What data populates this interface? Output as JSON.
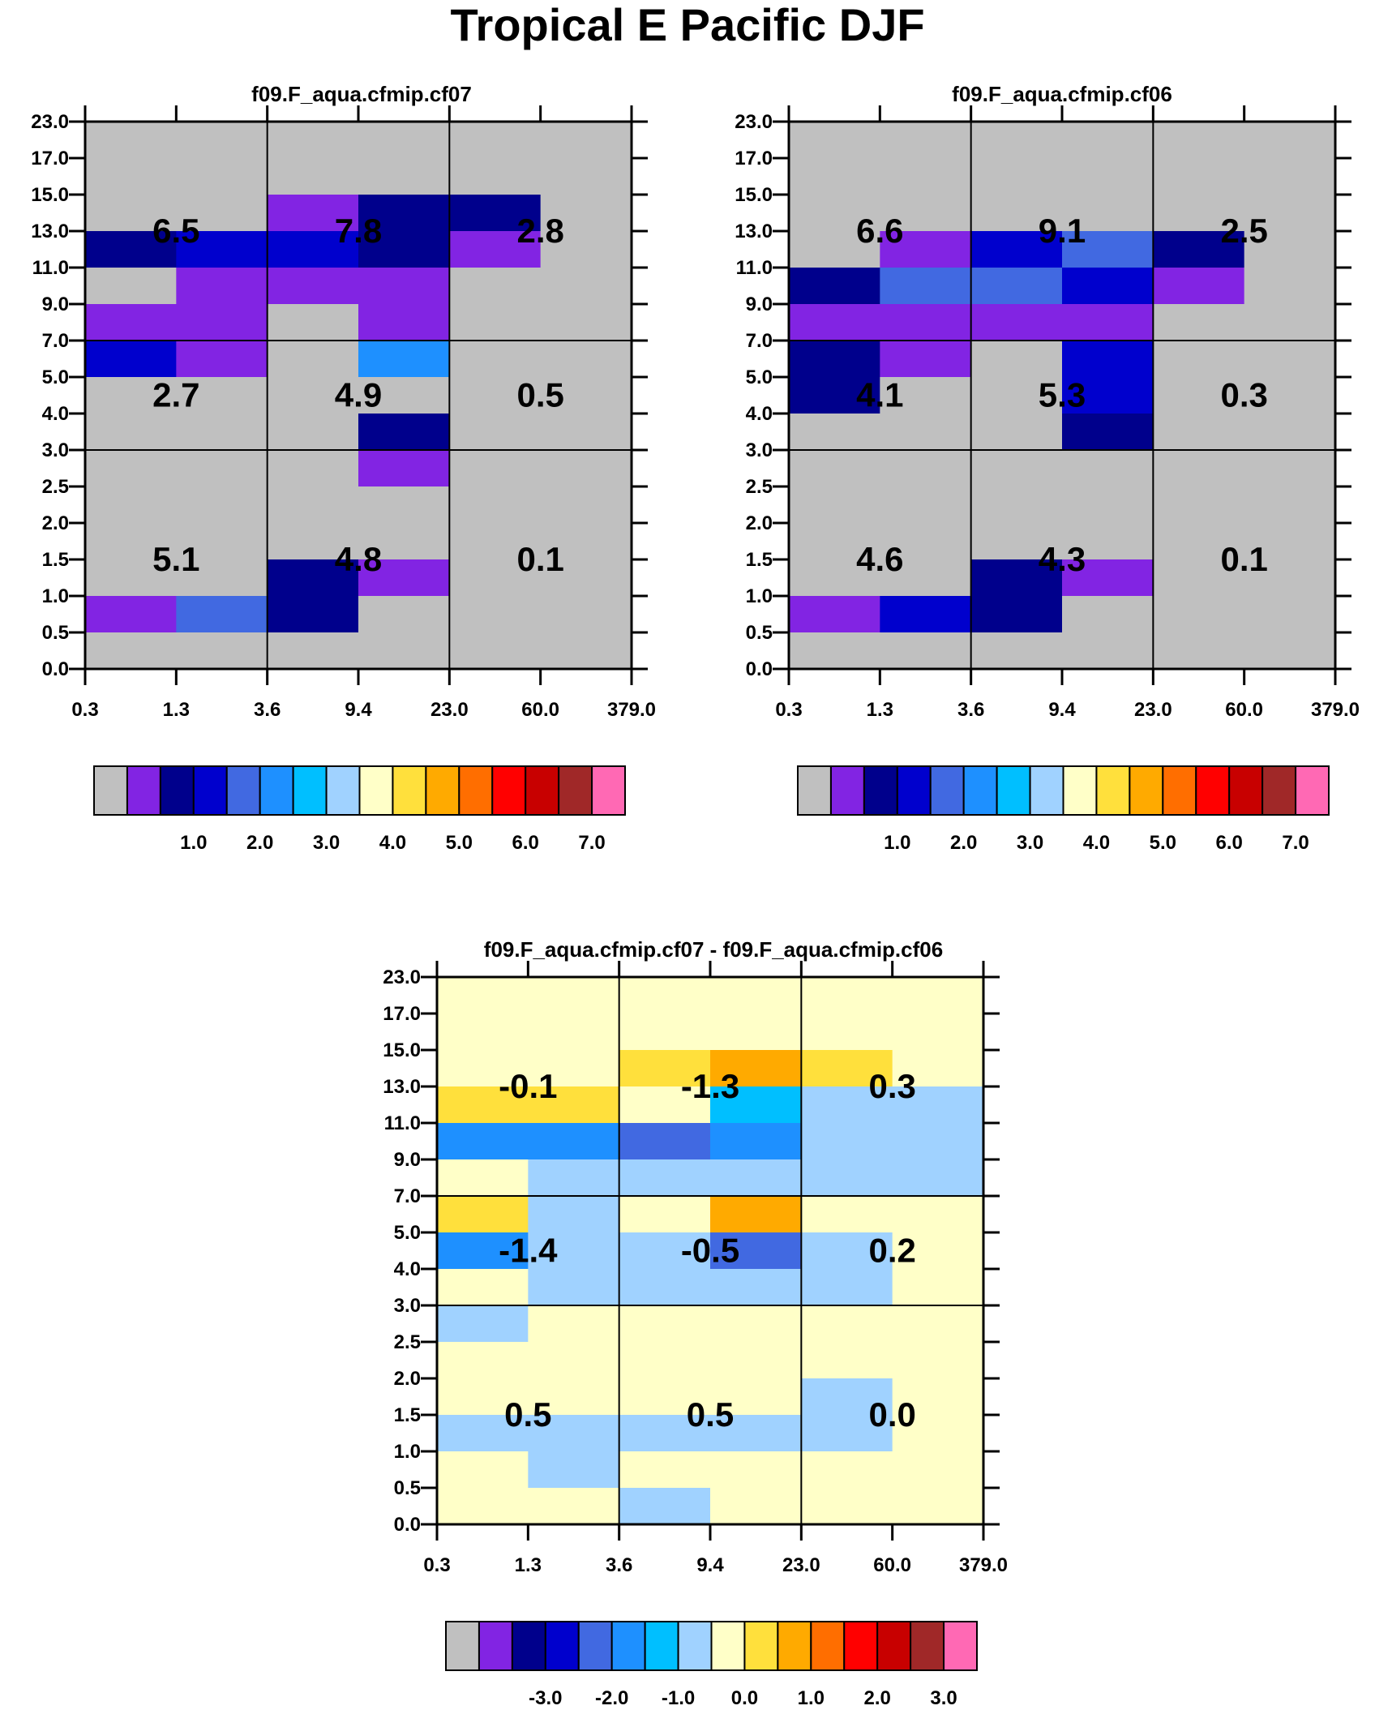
{
  "title": "Tropical E Pacific DJF",
  "colors": {
    "absolute_palette": [
      "#c0c0c0",
      "#8224e3",
      "#00008c",
      "#0000cd",
      "#4169e1",
      "#1e90ff",
      "#00bfff",
      "#a0d2ff",
      "#ffffc8",
      "#ffe03c",
      "#ffaa00",
      "#ff6e00",
      "#ff0000",
      "#c80000",
      "#a02828",
      "#ff69b4"
    ],
    "diff_palette": [
      "#c0c0c0",
      "#8224e3",
      "#00008c",
      "#0000cd",
      "#4169e1",
      "#1e90ff",
      "#00bfff",
      "#a0d2ff",
      "#ffffc8",
      "#ffe03c",
      "#ffaa00",
      "#ff6e00",
      "#ff0000",
      "#c80000",
      "#a02828",
      "#ff69b4"
    ]
  },
  "chart_data": [
    {
      "type": "heatmap",
      "title": "f09.F_aqua.cfmip.cf07",
      "x_tick_labels": [
        "0.3",
        "1.3",
        "3.6",
        "9.4",
        "23.0",
        "60.0",
        "379.0"
      ],
      "y_tick_labels": [
        "0.0",
        "0.5",
        "1.0",
        "1.5",
        "2.0",
        "2.5",
        "3.0",
        "4.0",
        "5.0",
        "7.0",
        "9.0",
        "11.0",
        "13.0",
        "15.0",
        "17.0",
        "23.0"
      ],
      "colorbar_labels": [
        "1.0",
        "2.0",
        "3.0",
        "4.0",
        "5.0",
        "6.0",
        "7.0"
      ],
      "cell_color_index_rows_top_to_bottom": [
        [
          0,
          0,
          0,
          0,
          0,
          0
        ],
        [
          0,
          0,
          0,
          0,
          0,
          0
        ],
        [
          0,
          0,
          1,
          2,
          2,
          0
        ],
        [
          2,
          3,
          3,
          2,
          1,
          0
        ],
        [
          0,
          1,
          1,
          1,
          0,
          0
        ],
        [
          1,
          1,
          0,
          1,
          0,
          0
        ],
        [
          3,
          1,
          0,
          5,
          0,
          0
        ],
        [
          0,
          0,
          0,
          0,
          0,
          0
        ],
        [
          0,
          0,
          0,
          2,
          0,
          0
        ],
        [
          0,
          0,
          0,
          1,
          0,
          0
        ],
        [
          0,
          0,
          0,
          0,
          0,
          0
        ],
        [
          0,
          0,
          0,
          0,
          0,
          0
        ],
        [
          0,
          0,
          2,
          1,
          0,
          0
        ],
        [
          1,
          4,
          2,
          0,
          0,
          0
        ],
        [
          0,
          0,
          0,
          0,
          0,
          0
        ]
      ],
      "block_values": [
        [
          "6.5",
          "7.8",
          "2.8"
        ],
        [
          "2.7",
          "4.9",
          "0.5"
        ],
        [
          "5.1",
          "4.8",
          "0.1"
        ]
      ]
    },
    {
      "type": "heatmap",
      "title": "f09.F_aqua.cfmip.cf06",
      "x_tick_labels": [
        "0.3",
        "1.3",
        "3.6",
        "9.4",
        "23.0",
        "60.0",
        "379.0"
      ],
      "y_tick_labels": [
        "0.0",
        "0.5",
        "1.0",
        "1.5",
        "2.0",
        "2.5",
        "3.0",
        "4.0",
        "5.0",
        "7.0",
        "9.0",
        "11.0",
        "13.0",
        "15.0",
        "17.0",
        "23.0"
      ],
      "colorbar_labels": [
        "1.0",
        "2.0",
        "3.0",
        "4.0",
        "5.0",
        "6.0",
        "7.0"
      ],
      "cell_color_index_rows_top_to_bottom": [
        [
          0,
          0,
          0,
          0,
          0,
          0
        ],
        [
          0,
          0,
          0,
          0,
          0,
          0
        ],
        [
          0,
          0,
          0,
          0,
          0,
          0
        ],
        [
          0,
          1,
          3,
          4,
          2,
          0
        ],
        [
          2,
          4,
          4,
          3,
          1,
          0
        ],
        [
          1,
          1,
          1,
          1,
          0,
          0
        ],
        [
          2,
          1,
          0,
          3,
          0,
          0
        ],
        [
          2,
          0,
          0,
          3,
          0,
          0
        ],
        [
          0,
          0,
          0,
          2,
          0,
          0
        ],
        [
          0,
          0,
          0,
          0,
          0,
          0
        ],
        [
          0,
          0,
          0,
          0,
          0,
          0
        ],
        [
          0,
          0,
          0,
          0,
          0,
          0
        ],
        [
          0,
          0,
          2,
          1,
          0,
          0
        ],
        [
          1,
          3,
          2,
          0,
          0,
          0
        ],
        [
          0,
          0,
          0,
          0,
          0,
          0
        ]
      ],
      "block_values": [
        [
          "6.6",
          "9.1",
          "2.5"
        ],
        [
          "4.1",
          "5.3",
          "0.3"
        ],
        [
          "4.6",
          "4.3",
          "0.1"
        ]
      ]
    },
    {
      "type": "heatmap",
      "title": "f09.F_aqua.cfmip.cf07 - f09.F_aqua.cfmip.cf06",
      "x_tick_labels": [
        "0.3",
        "1.3",
        "3.6",
        "9.4",
        "23.0",
        "60.0",
        "379.0"
      ],
      "y_tick_labels": [
        "0.0",
        "0.5",
        "1.0",
        "1.5",
        "2.0",
        "2.5",
        "3.0",
        "4.0",
        "5.0",
        "7.0",
        "9.0",
        "11.0",
        "13.0",
        "15.0",
        "17.0",
        "23.0"
      ],
      "colorbar_labels": [
        "-3.0",
        "-2.0",
        "-1.0",
        "0.0",
        "1.0",
        "2.0",
        "3.0"
      ],
      "cell_color_index_rows_top_to_bottom": [
        [
          8,
          8,
          8,
          8,
          8,
          8
        ],
        [
          8,
          8,
          8,
          8,
          8,
          8
        ],
        [
          8,
          8,
          9,
          10,
          9,
          8
        ],
        [
          9,
          9,
          8,
          6,
          7,
          7
        ],
        [
          5,
          5,
          4,
          5,
          7,
          7
        ],
        [
          8,
          7,
          7,
          7,
          7,
          7
        ],
        [
          9,
          7,
          8,
          10,
          8,
          8
        ],
        [
          5,
          7,
          7,
          4,
          7,
          8
        ],
        [
          8,
          7,
          7,
          7,
          7,
          8
        ],
        [
          7,
          8,
          8,
          8,
          8,
          8
        ],
        [
          8,
          8,
          8,
          8,
          8,
          8
        ],
        [
          8,
          8,
          8,
          8,
          7,
          8
        ],
        [
          7,
          7,
          7,
          7,
          7,
          8
        ],
        [
          8,
          7,
          8,
          8,
          8,
          8
        ],
        [
          8,
          8,
          7,
          8,
          8,
          8
        ]
      ],
      "block_values": [
        [
          "-0.1",
          "-1.3",
          "0.3"
        ],
        [
          "-1.4",
          "-0.5",
          "0.2"
        ],
        [
          "0.5",
          "0.5",
          "0.0"
        ]
      ]
    }
  ]
}
